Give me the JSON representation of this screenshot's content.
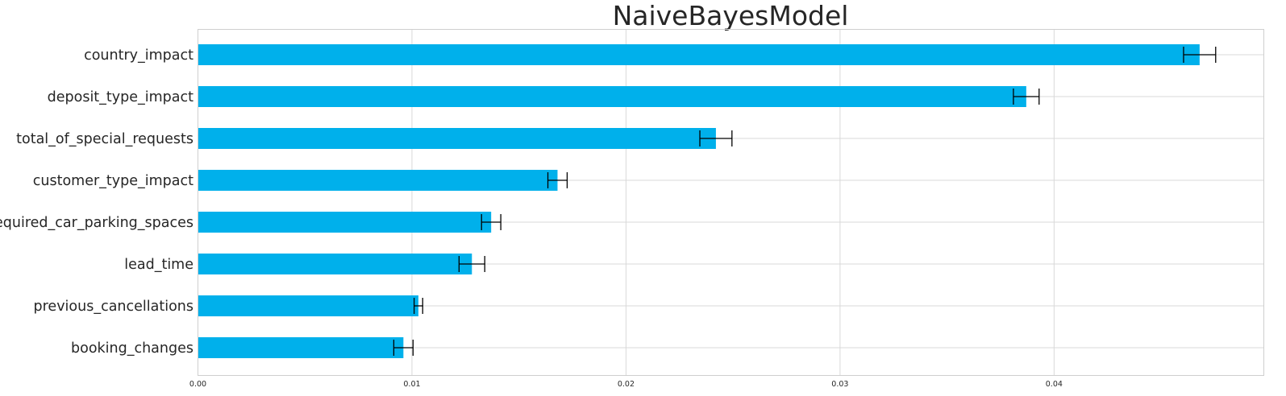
{
  "chart_data": {
    "type": "bar",
    "orientation": "horizontal",
    "title": "NaiveBayesModel",
    "xlabel": "",
    "ylabel": "",
    "xlim": [
      0,
      0.0498
    ],
    "xticks": [
      "0.00",
      "0.01",
      "0.02",
      "0.03",
      "0.04"
    ],
    "grid": true,
    "bar_color": "#00b0eb",
    "categories": [
      "country_impact",
      "deposit_type_impact",
      "total_of_special_requests",
      "customer_type_impact",
      "required_car_parking_spaces",
      "lead_time",
      "previous_cancellations",
      "booking_changes"
    ],
    "values": [
      0.0468,
      0.0387,
      0.0242,
      0.0168,
      0.0137,
      0.0128,
      0.0103,
      0.0096
    ],
    "errors": [
      0.00075,
      0.0006,
      0.00075,
      0.00045,
      0.00045,
      0.0006,
      0.0002,
      0.00045
    ]
  }
}
